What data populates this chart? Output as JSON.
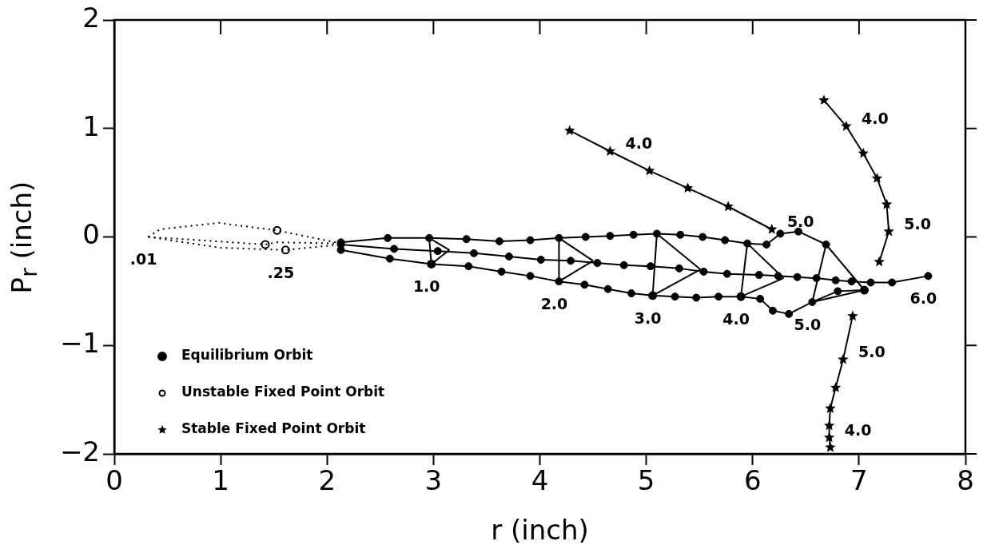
{
  "chart_data": {
    "type": "line",
    "xlabel": "r (inch)",
    "ylabel": "P$_{r}$ (inch)",
    "xlim": [
      0,
      8
    ],
    "ylim": [
      -2,
      2
    ],
    "xticks": [
      0,
      1,
      2,
      3,
      4,
      5,
      6,
      7,
      8
    ],
    "yticks": [
      {
        "value": -2,
        "label": "−2"
      },
      {
        "value": -1,
        "label": "−1"
      },
      0,
      1,
      2
    ],
    "grid": false,
    "legend": "bottom left",
    "series": [
      {
        "name": "Equilibrium Orbit",
        "color": "#000000",
        "marker": "circle",
        "line_style": "solid",
        "x": [
          2.13,
          2.57,
          2.96,
          3.31,
          3.62,
          3.91,
          4.18,
          4.43,
          4.66,
          4.88,
          5.1,
          5.32,
          5.53,
          5.74,
          5.95,
          6.13,
          6.26,
          6.43,
          6.69,
          7.05
        ],
        "values": [
          -0.05,
          -0.01,
          -0.01,
          -0.02,
          -0.04,
          -0.03,
          -0.01,
          0,
          0.01,
          0.02,
          0.03,
          0.02,
          0,
          -0.03,
          -0.06,
          -0.07,
          0.03,
          0.05,
          -0.07,
          -0.49
        ]
      },
      {
        "color": "#000000",
        "marker": "circle",
        "line_style": "solid",
        "x": [
          2.13,
          2.63,
          3.04,
          3.38,
          3.71,
          4.01,
          4.29,
          4.54,
          4.79,
          5.04,
          5.31,
          5.54,
          5.76,
          6.06,
          6.24,
          6.42,
          6.6,
          6.78,
          6.93,
          7.11,
          7.31,
          7.65
        ],
        "values": [
          -0.07,
          -0.11,
          -0.13,
          -0.15,
          -0.18,
          -0.21,
          -0.22,
          -0.24,
          -0.26,
          -0.27,
          -0.29,
          -0.32,
          -0.34,
          -0.35,
          -0.36,
          -0.37,
          -0.38,
          -0.4,
          -0.41,
          -0.42,
          -0.42,
          -0.36
        ]
      },
      {
        "color": "#000000",
        "marker": "circle",
        "line_style": "solid",
        "x": [
          2.13,
          2.59,
          2.98,
          3.33,
          3.64,
          3.91,
          4.18,
          4.42,
          4.64,
          4.86,
          5.06,
          5.27,
          5.47,
          5.68,
          5.89,
          6.07,
          6.19,
          6.34,
          6.56,
          6.8,
          7.05
        ],
        "values": [
          -0.12,
          -0.2,
          -0.25,
          -0.27,
          -0.32,
          -0.36,
          -0.41,
          -0.44,
          -0.48,
          -0.52,
          -0.54,
          -0.55,
          -0.56,
          -0.55,
          -0.55,
          -0.57,
          -0.68,
          -0.71,
          -0.6,
          -0.5,
          -0.49
        ]
      },
      {
        "color": "#000000",
        "marker": "none",
        "line_style": "solid",
        "x": [
          3.15,
          2.96,
          2.98
        ],
        "values": [
          -0.12,
          -0.01,
          -0.25
        ]
      },
      {
        "color": "#000000",
        "marker": "none",
        "line_style": "solid",
        "x": [
          2.98,
          3.15
        ],
        "values": [
          -0.25,
          -0.12
        ]
      },
      {
        "color": "#000000",
        "marker": "none",
        "line_style": "solid",
        "x": [
          4.5,
          4.18,
          4.18
        ],
        "values": [
          -0.22,
          -0.01,
          -0.41
        ]
      },
      {
        "color": "#000000",
        "marker": "none",
        "line_style": "solid",
        "x": [
          4.18,
          4.5
        ],
        "values": [
          -0.41,
          -0.22
        ]
      },
      {
        "color": "#000000",
        "marker": "none",
        "line_style": "solid",
        "x": [
          5.51,
          5.1,
          5.06
        ],
        "values": [
          -0.3,
          0.03,
          -0.54
        ]
      },
      {
        "color": "#000000",
        "marker": "none",
        "line_style": "solid",
        "x": [
          5.06,
          5.51
        ],
        "values": [
          -0.54,
          -0.3
        ]
      },
      {
        "color": "#000000",
        "marker": "none",
        "line_style": "solid",
        "x": [
          6.29,
          5.95,
          5.89
        ],
        "values": [
          -0.38,
          -0.06,
          -0.55
        ]
      },
      {
        "color": "#000000",
        "marker": "none",
        "line_style": "solid",
        "x": [
          5.89,
          6.29
        ],
        "values": [
          -0.55,
          -0.38
        ]
      },
      {
        "color": "#000000",
        "marker": "none",
        "line_style": "solid",
        "x": [
          6.69,
          6.56,
          7.05
        ],
        "values": [
          -0.07,
          -0.6,
          -0.49
        ]
      },
      {
        "color": "#000000",
        "marker": "none",
        "line_style": "dotted",
        "x": [
          0.32,
          0.43,
          0.98,
          1.53,
          2.13
        ],
        "values": [
          0,
          0.07,
          0.13,
          0.06,
          -0.06
        ]
      },
      {
        "color": "#000000",
        "marker": "none",
        "line_style": "dotted",
        "x": [
          0.32,
          0.8,
          1.42,
          1.53,
          2.13
        ],
        "values": [
          0,
          -0.03,
          -0.07,
          -0.05,
          -0.06
        ]
      },
      {
        "color": "#000000",
        "marker": "none",
        "line_style": "dotted",
        "x": [
          0.32,
          1.0,
          1.61,
          2.13
        ],
        "values": [
          0,
          -0.1,
          -0.12,
          -0.07
        ]
      },
      {
        "name": "Unstable Fixed Point Orbit",
        "type": "scatter",
        "color": "#000000",
        "marker": "circle",
        "x": [
          1.53,
          1.42,
          1.61,
          2.98,
          5.06,
          5.89,
          7.05
        ],
        "values": [
          0.06,
          -0.07,
          -0.12,
          -0.25,
          -0.54,
          -0.55,
          -0.49
        ]
      },
      {
        "name": "Stable Fixed Point Orbit",
        "color": "#000000",
        "marker": "star",
        "line_style": "solid",
        "x": [
          4.28,
          4.66,
          5.03,
          5.39,
          5.77,
          6.18
        ],
        "values": [
          0.98,
          0.79,
          0.61,
          0.45,
          0.28,
          0.07
        ]
      },
      {
        "color": "#000000",
        "marker": "star",
        "line_style": "solid",
        "x": [
          6.67,
          6.88,
          7.04,
          7.17,
          7.26,
          7.28,
          7.19
        ],
        "values": [
          1.26,
          1.02,
          0.77,
          0.54,
          0.3,
          0.05,
          -0.23
        ]
      },
      {
        "color": "#000000",
        "marker": "star",
        "line_style": "solid",
        "x": [
          6.94,
          6.85,
          6.78,
          6.73,
          6.72,
          6.72,
          6.73
        ],
        "values": [
          -0.73,
          -1.13,
          -1.39,
          -1.58,
          -1.74,
          -1.85,
          -1.94
        ]
      }
    ],
    "annotations": [
      {
        "text": ".01",
        "x": 0.32,
        "y": 0
      },
      {
        "text": ".25",
        "x": 1.61,
        "y": -0.12
      },
      {
        "text": "1.0",
        "x": 2.98,
        "y": -0.25
      },
      {
        "text": "2.0",
        "x": 4.18,
        "y": -0.41
      },
      {
        "text": "3.0",
        "x": 5.06,
        "y": -0.54
      },
      {
        "text": "4.0",
        "x": 5.89,
        "y": -0.55
      },
      {
        "text": "5.0",
        "x": 6.56,
        "y": -0.6
      },
      {
        "text": "6.0",
        "x": 7.65,
        "y": -0.36
      },
      {
        "text": "4.0",
        "x": 4.66,
        "y": 0.79
      },
      {
        "text": "5.0",
        "x": 6.18,
        "y": 0.07
      },
      {
        "text": "4.0",
        "x": 6.88,
        "y": 1.02
      },
      {
        "text": "5.0",
        "x": 7.28,
        "y": 0.05
      },
      {
        "text": "5.0",
        "x": 6.85,
        "y": -1.13
      },
      {
        "text": "4.0",
        "x": 6.72,
        "y": -1.85
      }
    ]
  }
}
